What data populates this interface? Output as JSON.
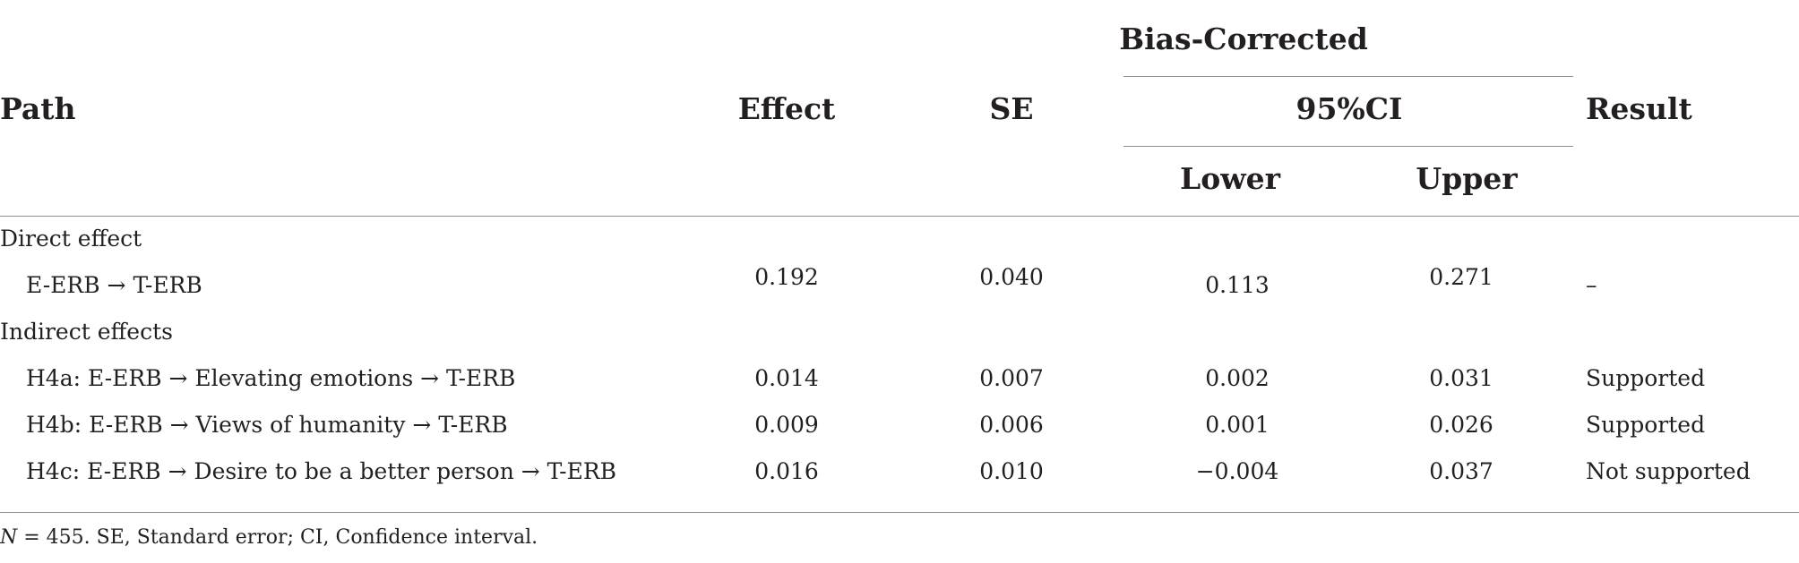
{
  "table": {
    "headers": {
      "path": "Path",
      "effect": "Effect",
      "se": "SE",
      "bias_corrected": "Bias-Corrected",
      "ci": "95%CI",
      "lower": "Lower",
      "upper": "Upper",
      "result": "Result"
    },
    "sections": {
      "direct": "Direct effect",
      "indirect": "Indirect effects"
    },
    "rows": [
      {
        "path": "E-ERB → T-ERB",
        "effect": "0.192",
        "se": "0.040",
        "lower": "0.113",
        "upper": "0.271",
        "result": "–"
      },
      {
        "path": "H4a: E-ERB → Elevating emotions → T-ERB",
        "effect": "0.014",
        "se": "0.007",
        "lower": "0.002",
        "upper": "0.031",
        "result": "Supported"
      },
      {
        "path": "H4b: E-ERB → Views of humanity → T-ERB",
        "effect": "0.009",
        "se": "0.006",
        "lower": "0.001",
        "upper": "0.026",
        "result": "Supported"
      },
      {
        "path": "H4c: E-ERB → Desire to be a better person → T-ERB",
        "effect": "0.016",
        "se": "0.010",
        "lower": "−0.004",
        "upper": "0.037",
        "result": "Not supported"
      }
    ],
    "footnote": {
      "n_symbol": "N",
      "text": " = 455. SE, Standard error; CI, Confidence interval."
    }
  }
}
